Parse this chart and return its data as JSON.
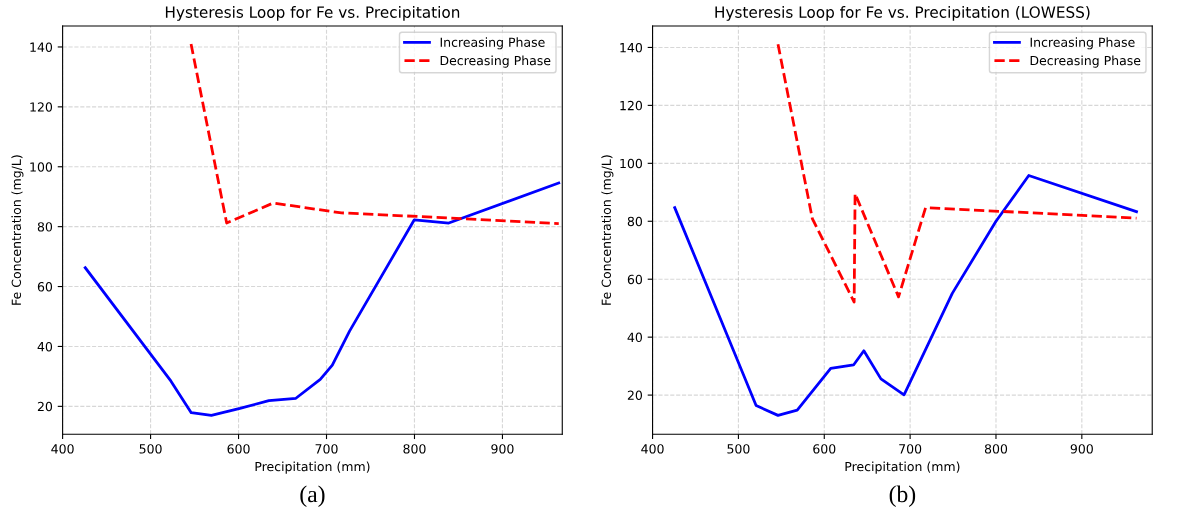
{
  "chart_data": [
    {
      "type": "line",
      "title": "Hysteresis Loop for Fe vs. Precipitation",
      "xlabel": "Precipitation (mm)",
      "ylabel": "Fe Concentration (mg/L)",
      "xlim": [
        400,
        968
      ],
      "xticks": [
        400,
        500,
        600,
        700,
        800,
        900
      ],
      "ylim": [
        10.7,
        147
      ],
      "yticks": [
        20,
        40,
        60,
        80,
        100,
        120,
        140
      ],
      "grid": true,
      "legend": "top right",
      "annotations": [
        "(a)"
      ],
      "series": [
        {
          "name": "Increasing Phase",
          "color": "#0000ff",
          "line_style": "solid",
          "x": [
            425.7,
            523,
            546.2,
            569.1,
            601.6,
            634.5,
            665.2,
            692.9,
            706.6,
            726.2,
            799.8,
            839,
            964
          ],
          "values": [
            66.3,
            28.5,
            17.9,
            17.0,
            19.3,
            21.9,
            22.7,
            29.0,
            33.8,
            45.1,
            82.3,
            81.2,
            94.6
          ]
        },
        {
          "name": "Decreasing Phase",
          "color": "#ff0000",
          "line_style": "dashed",
          "x": [
            546,
            586.5,
            639.4,
            717,
            839,
            964
          ],
          "values": [
            141.0,
            81.2,
            87.9,
            84.6,
            82.9,
            81.0
          ]
        }
      ]
    },
    {
      "type": "line",
      "title": "Hysteresis Loop for Fe vs. Precipitation (LOWESS)",
      "xlabel": "Precipitation (mm)",
      "ylabel": "Fe Concentration (mg/L)",
      "xlim": [
        400,
        982
      ],
      "xticks": [
        400,
        500,
        600,
        700,
        800,
        900
      ],
      "ylim": [
        6.5,
        147.4
      ],
      "yticks": [
        20,
        40,
        60,
        80,
        100,
        120,
        140
      ],
      "grid": true,
      "legend": "top right",
      "annotations": [
        "(b)"
      ],
      "series": [
        {
          "name": "Increasing Phase",
          "color": "#0000ff",
          "line_style": "solid",
          "x": [
            425.8,
            520.6,
            546.1,
            568.5,
            607.5,
            634.1,
            646.1,
            666,
            692.9,
            749.1,
            800,
            838.2,
            963.7
          ],
          "values": [
            84.7,
            16.4,
            13.0,
            14.8,
            29.2,
            30.4,
            35.3,
            25.6,
            20.1,
            55.1,
            80.0,
            95.8,
            83.3
          ]
        },
        {
          "name": "Decreasing Phase",
          "color": "#ff0000",
          "line_style": "dashed",
          "x": [
            546.1,
            586.1,
            634.8,
            635.9,
            686.5,
            718,
            963.7
          ],
          "values": [
            141.1,
            80.9,
            52.1,
            89.5,
            53.9,
            84.7,
            81.1
          ]
        }
      ]
    }
  ]
}
